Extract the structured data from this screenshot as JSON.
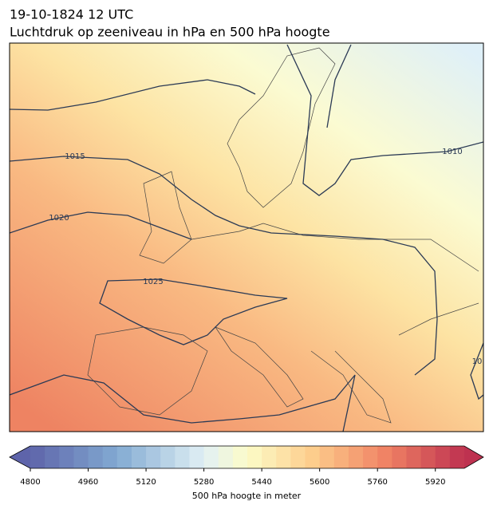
{
  "header": {
    "date": "19-10-1824 12 UTC",
    "title": "Luchtdruk op zeeniveau in hPa en 500 hPa hoogte"
  },
  "map": {
    "isobar_labels": [
      1015,
      1020,
      1025,
      1010,
      10
    ]
  },
  "colorbar": {
    "label": "500 hPa hoogte in meter",
    "lim": [
      4800,
      6000
    ],
    "step": 40,
    "ticks": [
      4800,
      4960,
      5120,
      5280,
      5440,
      5600,
      5760,
      5920
    ]
  }
}
